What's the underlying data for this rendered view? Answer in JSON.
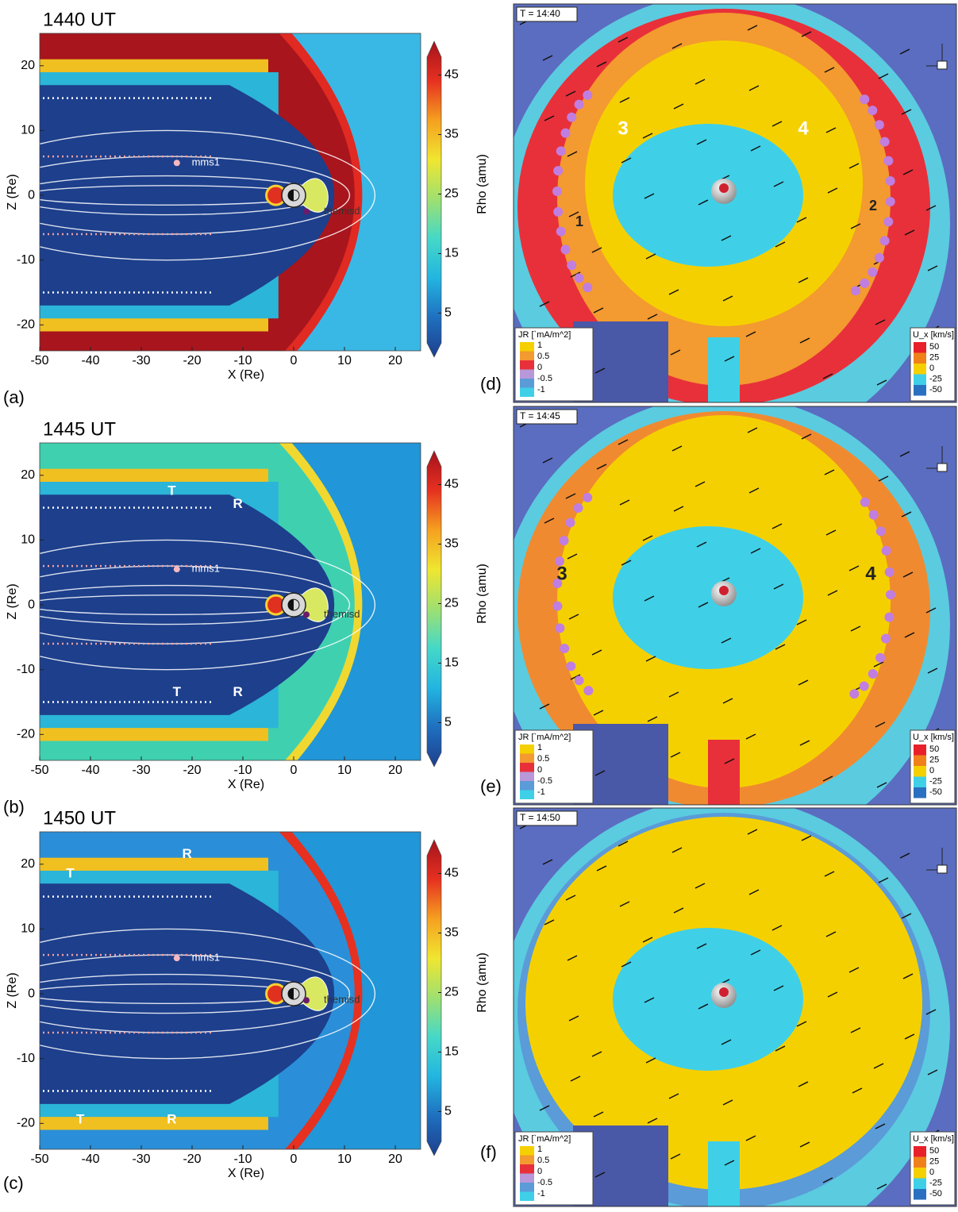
{
  "figure": {
    "colorbar_label": "Rho (amu)",
    "left_panels": [
      {
        "letter": "(a)",
        "title": "1440 UT",
        "xlabel": "X (Re)",
        "ylabel": "Z (Re)",
        "xlim": [
          -50,
          25
        ],
        "ylim": [
          -24,
          25
        ],
        "xticks": [
          -50,
          -40,
          -30,
          -20,
          -10,
          0,
          10,
          20
        ],
        "yticks": [
          20,
          10,
          0,
          -10,
          -20
        ],
        "clim": [
          0,
          48
        ],
        "cticks": [
          45,
          35,
          25,
          15,
          5
        ],
        "annotations": [
          "mms1",
          "themisd"
        ]
      },
      {
        "letter": "(b)",
        "title": "1445 UT",
        "xlabel": "X (Re)",
        "ylabel": "Z (Re)",
        "xlim": [
          -50,
          25
        ],
        "ylim": [
          -24,
          25
        ],
        "xticks": [
          -50,
          -40,
          -30,
          -20,
          -10,
          0,
          10,
          20
        ],
        "yticks": [
          20,
          10,
          0,
          -10,
          -20
        ],
        "clim": [
          0,
          48
        ],
        "cticks": [
          45,
          35,
          25,
          15,
          5
        ],
        "annotations": [
          "mms1",
          "themisd",
          "T",
          "R",
          "T",
          "R"
        ]
      },
      {
        "letter": "(c)",
        "title": "1450 UT",
        "xlabel": "X (Re)",
        "ylabel": "Z (Re)",
        "xlim": [
          -50,
          25
        ],
        "ylim": [
          -24,
          25
        ],
        "xticks": [
          -50,
          -40,
          -30,
          -20,
          -10,
          0,
          10,
          20
        ],
        "yticks": [
          20,
          10,
          0,
          -10,
          -20
        ],
        "clim": [
          0,
          48
        ],
        "cticks": [
          45,
          35,
          25,
          15,
          5
        ],
        "annotations": [
          "mms1",
          "themisd",
          "R",
          "T",
          "T",
          "R"
        ]
      }
    ],
    "right_panels": [
      {
        "letter": "(d)",
        "time": "T = 14:40",
        "labels": [
          "1",
          "2",
          "3",
          "4"
        ]
      },
      {
        "letter": "(e)",
        "time": "T = 14:45",
        "labels": [
          "3",
          "4"
        ]
      },
      {
        "letter": "(f)",
        "time": "T = 14:50",
        "labels": []
      }
    ],
    "jr_legend": {
      "title": "JR [`mA/m^2]",
      "ticks": [
        "1",
        "0.5",
        "0",
        "-0.5",
        "-1"
      ]
    },
    "ux_legend": {
      "title": "U_x [km/s]",
      "ticks": [
        "50",
        "25",
        "0",
        "-25",
        "-50"
      ]
    }
  }
}
